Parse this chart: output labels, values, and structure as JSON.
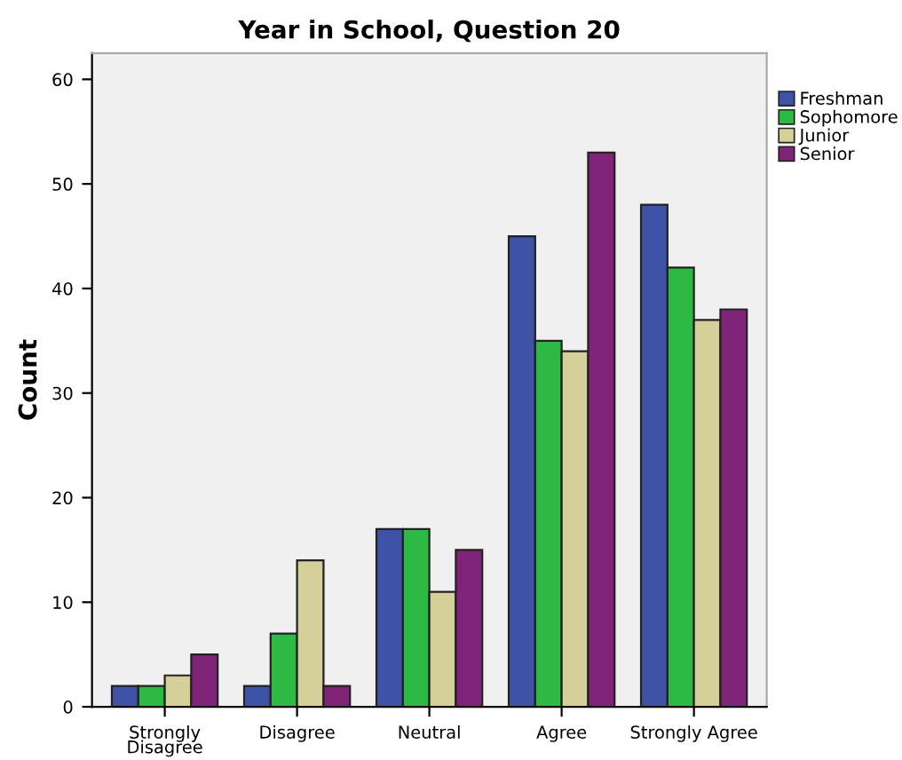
{
  "chart_data": {
    "type": "bar",
    "title": "Year in School, Question 20",
    "ylabel": "Count",
    "categories": [
      "Strongly\nDisagree",
      "Disagree",
      "Neutral",
      "Agree",
      "Strongly Agree"
    ],
    "series": [
      {
        "name": "Freshman",
        "color": "#3e53a6",
        "values": [
          2,
          2,
          17,
          45,
          48
        ]
      },
      {
        "name": "Sophomore",
        "color": "#2db944",
        "values": [
          2,
          7,
          17,
          35,
          42
        ]
      },
      {
        "name": "Junior",
        "color": "#d5d09a",
        "values": [
          3,
          14,
          11,
          34,
          37
        ]
      },
      {
        "name": "Senior",
        "color": "#7f2478",
        "values": [
          5,
          2,
          15,
          53,
          38
        ]
      }
    ],
    "ylim": [
      0,
      62.5
    ],
    "yticks": [
      0,
      10,
      20,
      30,
      40,
      50,
      60
    ],
    "grid": false,
    "legend": "top right"
  }
}
